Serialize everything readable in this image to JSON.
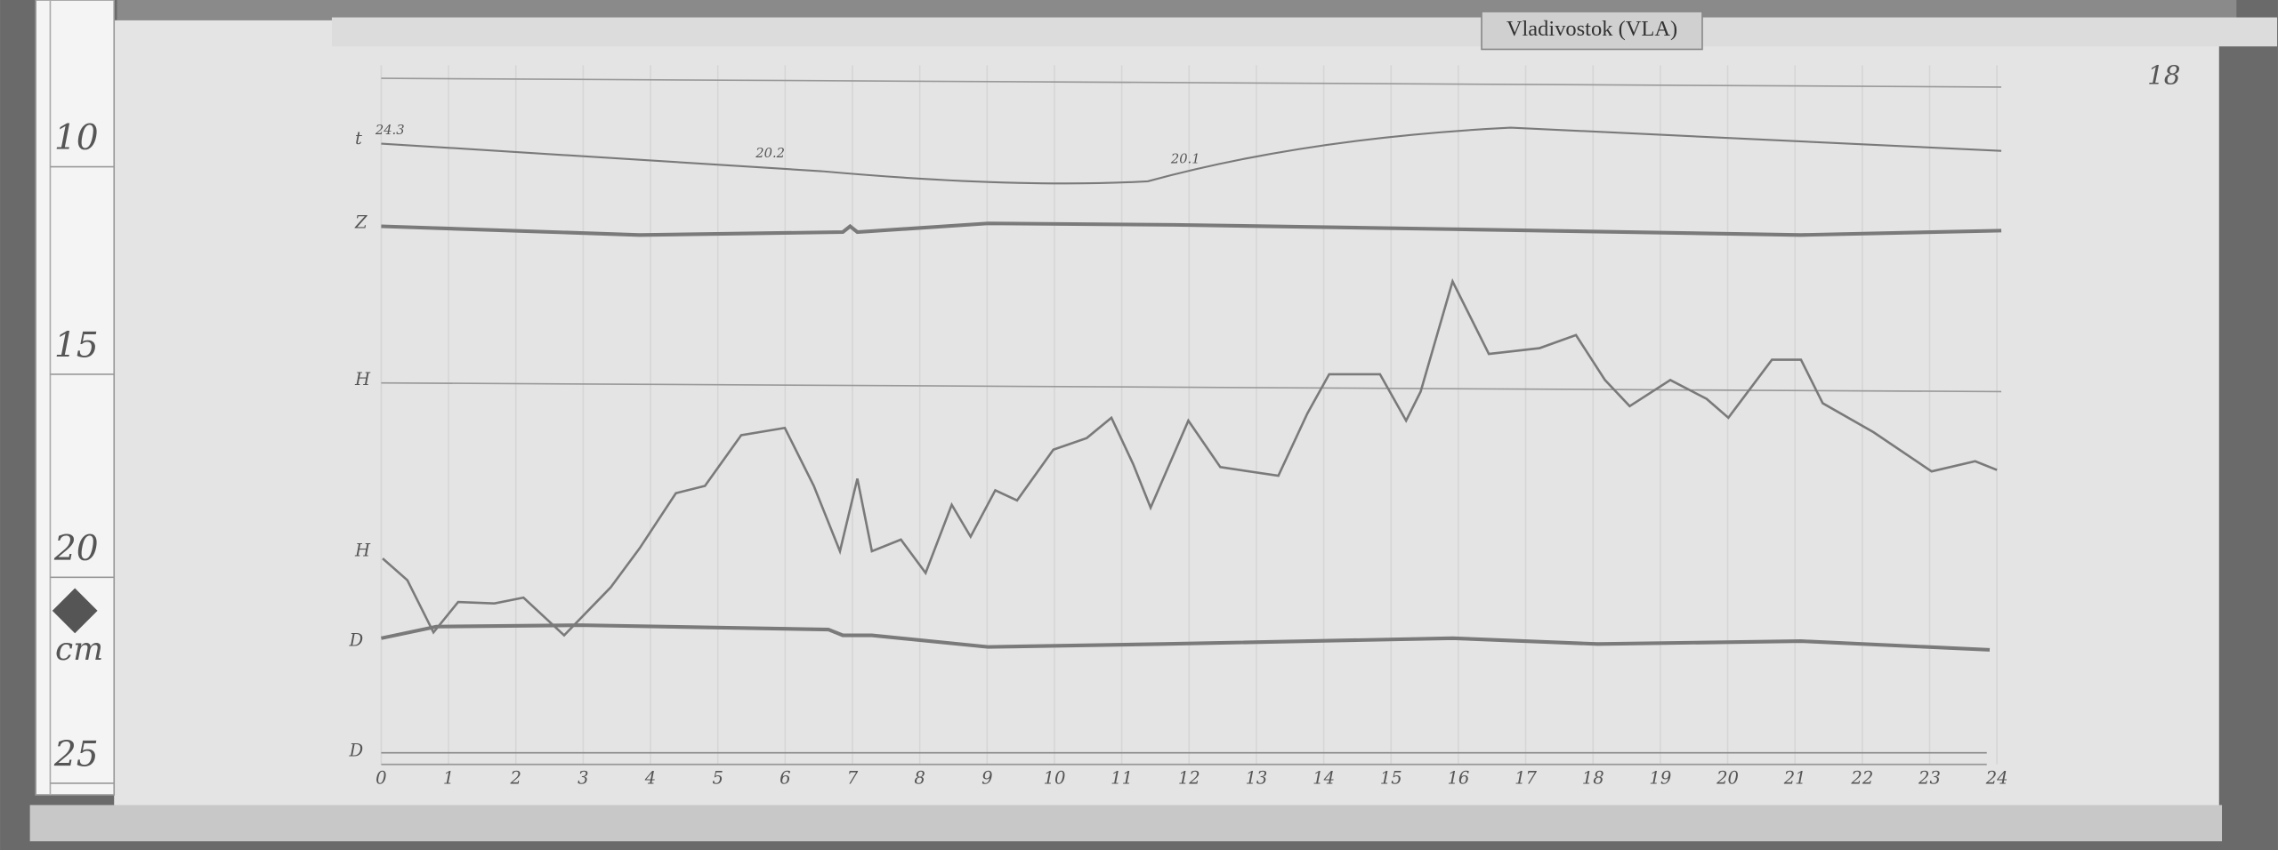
{
  "station_tag": "Vladivostok (VLA)",
  "corner_mark": "18",
  "ruler": {
    "marks": [
      "10",
      "15",
      "20",
      "25"
    ],
    "unit": "cm"
  },
  "trace_labels": [
    "t",
    "Z",
    "H",
    "D"
  ],
  "temperature_notes": [
    "24.3",
    "20.2",
    "20.1"
  ],
  "hours": [
    "0",
    "1",
    "2",
    "3",
    "4",
    "5",
    "6",
    "7",
    "8",
    "9",
    "10",
    "11",
    "12",
    "13",
    "14",
    "15",
    "16",
    "17",
    "18",
    "19",
    "20",
    "21",
    "22",
    "23",
    "24"
  ]
}
